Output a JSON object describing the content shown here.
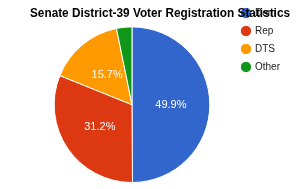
{
  "chart_data": {
    "type": "pie",
    "title": "Senate District-39 Voter Registration Statistics",
    "categories": [
      "Dem",
      "Rep",
      "DTS",
      "Other"
    ],
    "values": [
      49.9,
      31.2,
      15.7,
      3.2
    ],
    "colors": [
      "#3366cc",
      "#dc3912",
      "#ff9900",
      "#109618"
    ],
    "data_labels": true,
    "value_labels": [
      "49.9%",
      "31.2%",
      "15.7%",
      null
    ],
    "legend": "right"
  }
}
